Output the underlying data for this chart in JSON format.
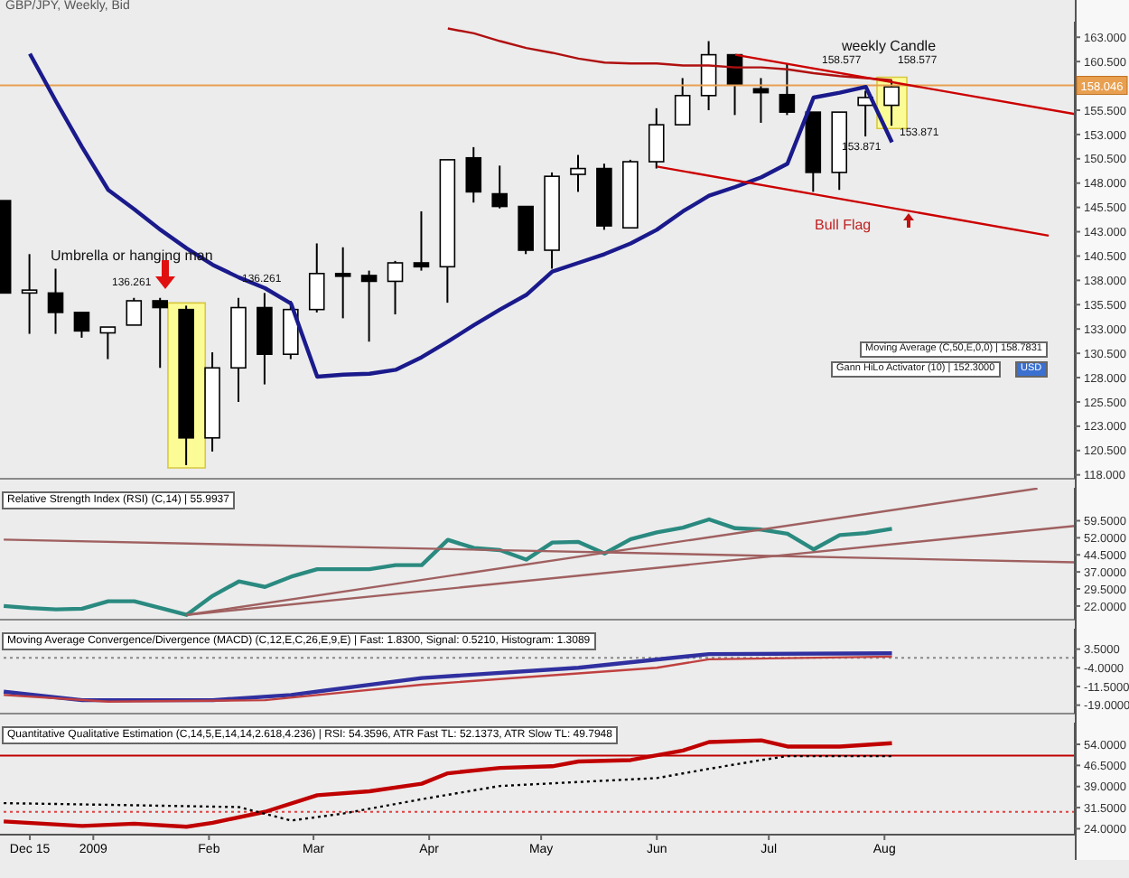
{
  "chart_data": [
    {
      "type": "candlestick",
      "title": "GBP/JPY, Weekly, Bid",
      "tick_labels": "y",
      "x": [
        "2008-12-08",
        "2008-12-15",
        "2008-12-22",
        "2008-12-29",
        "2009-01-05",
        "2009-01-12",
        "2009-01-19",
        "2009-01-26",
        "2009-02-02",
        "2009-02-09",
        "2009-02-16",
        "2009-02-23",
        "2009-03-02",
        "2009-03-09",
        "2009-03-16",
        "2009-03-23",
        "2009-03-30",
        "2009-04-06",
        "2009-04-13",
        "2009-04-20",
        "2009-04-27",
        "2009-05-04",
        "2009-05-11",
        "2009-05-18",
        "2009-05-25",
        "2009-06-01",
        "2009-06-08",
        "2009-06-15",
        "2009-06-22",
        "2009-06-29",
        "2009-07-06",
        "2009-07-13",
        "2009-07-20",
        "2009-07-27",
        "2009-08-03"
      ],
      "ohlc": [
        [
          146.2,
          146.2,
          136.7,
          136.7
        ],
        [
          136.7,
          140.7,
          132.5,
          137.0
        ],
        [
          136.7,
          139.2,
          132.5,
          134.7
        ],
        [
          134.7,
          134.7,
          132.1,
          132.8
        ],
        [
          132.6,
          133.2,
          129.9,
          133.2
        ],
        [
          133.4,
          136.2,
          133.4,
          135.9
        ],
        [
          135.9,
          136.2,
          129.0,
          135.2
        ],
        [
          135.0,
          135.4,
          119.0,
          121.8
        ],
        [
          121.8,
          130.6,
          120.4,
          129.0
        ],
        [
          129.0,
          136.2,
          125.5,
          135.2
        ],
        [
          135.2,
          136.7,
          127.3,
          130.4
        ],
        [
          130.4,
          135.9,
          129.9,
          135.0
        ],
        [
          135.0,
          141.8,
          134.7,
          138.7
        ],
        [
          138.7,
          141.4,
          134.1,
          138.5
        ],
        [
          138.5,
          139.0,
          131.7,
          137.9
        ],
        [
          137.9,
          140.0,
          134.5,
          139.8
        ],
        [
          139.8,
          145.1,
          139.0,
          139.4
        ],
        [
          139.4,
          150.4,
          135.7,
          150.4
        ],
        [
          150.6,
          151.7,
          146.0,
          147.1
        ],
        [
          146.9,
          149.8,
          145.4,
          145.6
        ],
        [
          145.6,
          145.6,
          140.7,
          141.1
        ],
        [
          141.1,
          149.1,
          139.2,
          148.7
        ],
        [
          148.9,
          150.9,
          147.1,
          149.5
        ],
        [
          149.5,
          150.0,
          143.2,
          143.6
        ],
        [
          143.4,
          150.4,
          143.4,
          150.2
        ],
        [
          150.2,
          155.7,
          149.5,
          154.0
        ],
        [
          154.0,
          158.8,
          154.0,
          157.0
        ],
        [
          157.0,
          162.6,
          155.5,
          161.2
        ],
        [
          161.2,
          161.2,
          155.0,
          158.1
        ],
        [
          157.7,
          158.8,
          154.2,
          157.3
        ],
        [
          157.1,
          160.3,
          155.0,
          155.3
        ],
        [
          155.3,
          155.3,
          147.1,
          149.1
        ],
        [
          149.1,
          155.3,
          147.3,
          155.3
        ],
        [
          156.0,
          157.5,
          152.8,
          156.8
        ],
        [
          156.0,
          158.6,
          153.9,
          157.9
        ]
      ],
      "series": [
        {
          "type": "line",
          "color": "#1a1a8c",
          "x": [
            "2008-12-15",
            "2008-12-22",
            "2008-12-29",
            "2009-01-05",
            "2009-01-12",
            "2009-01-19",
            "2009-01-26",
            "2009-02-02",
            "2009-02-09",
            "2009-02-16",
            "2009-02-23",
            "2009-03-02",
            "2009-03-09",
            "2009-03-16",
            "2009-03-23",
            "2009-03-30",
            "2009-04-06",
            "2009-04-13",
            "2009-04-20",
            "2009-04-27",
            "2009-05-04",
            "2009-05-11",
            "2009-05-18",
            "2009-05-25",
            "2009-06-01",
            "2009-06-08",
            "2009-06-15",
            "2009-06-22",
            "2009-06-29",
            "2009-07-06",
            "2009-07-13",
            "2009-07-20",
            "2009-07-27",
            "2009-08-03"
          ],
          "values": [
            161.3,
            156.4,
            151.7,
            147.3,
            145.3,
            143.2,
            141.3,
            139.6,
            138.3,
            137.2,
            135.6,
            128.1,
            128.3,
            128.4,
            128.8,
            130.1,
            131.7,
            133.4,
            135.0,
            136.5,
            138.9,
            139.8,
            140.7,
            141.8,
            143.2,
            145.1,
            146.7,
            147.6,
            148.6,
            150.0,
            156.8,
            157.3,
            157.9,
            152.2
          ]
        },
        {
          "type": "line",
          "color": "#b01010",
          "x": [
            "2009-04-06",
            "2009-04-13",
            "2009-04-20",
            "2009-04-27",
            "2009-05-04",
            "2009-05-11",
            "2009-05-18",
            "2009-05-25",
            "2009-06-01",
            "2009-06-08",
            "2009-06-15",
            "2009-06-22",
            "2009-06-29",
            "2009-07-06",
            "2009-07-13",
            "2009-07-20",
            "2009-07-27",
            "2009-08-03"
          ],
          "values": [
            163.9,
            163.4,
            162.6,
            161.9,
            161.4,
            160.8,
            160.4,
            160.3,
            160.3,
            160.1,
            160.1,
            159.9,
            159.9,
            159.7,
            159.3,
            159.0,
            158.8,
            158.6
          ]
        },
        {
          "type": "line",
          "color": "#cc0000",
          "x": [
            "2009-06-22",
            "2009-09-21"
          ],
          "values": [
            161.2,
            155.1
          ]
        },
        {
          "type": "line",
          "color": "#cc0000",
          "x": [
            "2009-06-01",
            "2009-09-14"
          ],
          "values": [
            149.7,
            142.6
          ]
        }
      ],
      "xlim": [
        "2008-12-07",
        "2009-09-21"
      ],
      "ylim": [
        117.6,
        164.6
      ],
      "yticks": [
        {
          "value": 118,
          "label": "118.000"
        },
        {
          "value": 120.5,
          "label": "120.500"
        },
        {
          "value": 123,
          "label": "123.000"
        },
        {
          "value": 125.5,
          "label": "125.500"
        },
        {
          "value": 128,
          "label": "128.000"
        },
        {
          "value": 130.5,
          "label": "130.500"
        },
        {
          "value": 133,
          "label": "133.000"
        },
        {
          "value": 135.5,
          "label": "135.500"
        },
        {
          "value": 138,
          "label": "138.000"
        },
        {
          "value": 140.5,
          "label": "140.500"
        },
        {
          "value": 143,
          "label": "143.000"
        },
        {
          "value": 145.5,
          "label": "145.500"
        },
        {
          "value": 148,
          "label": "148.000"
        },
        {
          "value": 150.5,
          "label": "150.500"
        },
        {
          "value": 153,
          "label": "153.000"
        },
        {
          "value": 155.5,
          "label": "155.500"
        },
        {
          "value": 160.5,
          "label": "160.500"
        },
        {
          "value": 163,
          "label": "163.000"
        }
      ],
      "ref_lines": [
        {
          "axis": "y",
          "value": 158.046,
          "label": "158.046",
          "color": "#e8a050"
        }
      ],
      "bands": [
        {
          "axis": "x",
          "from": "2009-01-21",
          "to": "2009-01-31",
          "color": "#ffff88"
        },
        {
          "axis": "x",
          "from": "2009-07-30",
          "to": "2009-08-07",
          "color": "#ffff88"
        }
      ],
      "annotations": [
        "Umbrella or hanging man",
        "136.261",
        "136.261",
        "weekly Candle",
        "158.577",
        "158.577",
        "153.871",
        "153.871",
        "Bull Flag",
        "Moving Average (C,50,E,0,0) | 158.7831",
        "Gann HiLo Activator (10) | 152.3000",
        "USD"
      ]
    },
    {
      "type": "line",
      "title": "Relative Strength Index (RSI) (C,14) | 55.9937",
      "tick_labels": "y",
      "series": [
        {
          "type": "line",
          "color": "#2a8a80",
          "x": [
            "2008-12-08",
            "2008-12-15",
            "2008-12-22",
            "2008-12-29",
            "2009-01-05",
            "2009-01-12",
            "2009-01-26",
            "2009-02-02",
            "2009-02-09",
            "2009-02-16",
            "2009-02-23",
            "2009-03-02",
            "2009-03-09",
            "2009-03-16",
            "2009-03-23",
            "2009-03-30",
            "2009-04-06",
            "2009-04-13",
            "2009-04-20",
            "2009-04-27",
            "2009-05-04",
            "2009-05-11",
            "2009-05-18",
            "2009-05-25",
            "2009-06-01",
            "2009-06-08",
            "2009-06-15",
            "2009-06-22",
            "2009-06-29",
            "2009-07-06",
            "2009-07-13",
            "2009-07-20",
            "2009-07-27",
            "2009-08-03"
          ],
          "values": [
            22.0,
            21.1,
            20.5,
            20.8,
            24.1,
            24.1,
            18.1,
            26.5,
            32.8,
            30.4,
            34.9,
            38.2,
            38.2,
            38.2,
            40.0,
            40.0,
            51.1,
            47.5,
            46.6,
            42.4,
            49.9,
            50.2,
            45.1,
            51.4,
            54.4,
            56.5,
            60.1,
            56.2,
            55.6,
            53.8,
            46.9,
            53.2,
            54.1,
            56.0
          ]
        },
        {
          "type": "line",
          "color": "#a06060",
          "x": [
            "2009-01-26",
            "2009-09-11"
          ],
          "values": [
            18.1,
            73.7
          ]
        },
        {
          "type": "line",
          "color": "#a06060",
          "x": [
            "2009-01-26",
            "2009-09-21"
          ],
          "values": [
            18.1,
            57.2
          ]
        },
        {
          "type": "line",
          "color": "#a06060",
          "x": [
            "2008-12-08",
            "2009-09-21"
          ],
          "values": [
            51.2,
            41.2
          ]
        }
      ],
      "xlim": [
        "2008-12-07",
        "2009-09-21"
      ],
      "ylim": [
        16,
        74
      ],
      "yticks": [
        {
          "value": 22,
          "label": "22.0000"
        },
        {
          "value": 29.5,
          "label": "29.5000"
        },
        {
          "value": 37,
          "label": "37.0000"
        },
        {
          "value": 44.5,
          "label": "44.5000"
        },
        {
          "value": 52,
          "label": "52.0000"
        },
        {
          "value": 59.5,
          "label": "59.5000"
        }
      ]
    },
    {
      "type": "line",
      "title": "Moving Average Convergence/Divergence (MACD) (C,12,E,C,26,E,9,E) | Fast: 1.8300, Signal: 0.5210, Histogram: 1.3089",
      "tick_labels": "y",
      "series": [
        {
          "type": "line",
          "color": "#3030a0",
          "x": [
            "2008-12-08",
            "2008-12-29",
            "2009-02-02",
            "2009-02-23",
            "2009-03-30",
            "2009-05-11",
            "2009-06-15",
            "2009-08-03"
          ],
          "values": [
            -13.6,
            -17.0,
            -17.0,
            -14.9,
            -8.1,
            -4.0,
            1.5,
            1.8
          ]
        },
        {
          "type": "line",
          "color": "#c04040",
          "x": [
            "2008-12-08",
            "2009-01-05",
            "2009-02-16",
            "2009-03-30",
            "2009-06-01",
            "2009-06-15",
            "2009-08-03"
          ],
          "values": [
            -14.9,
            -17.6,
            -17.0,
            -10.8,
            -4.0,
            -0.6,
            0.5
          ]
        }
      ],
      "ref_lines": [
        {
          "axis": "y",
          "value": 0,
          "color": "#888888",
          "line_style": "dotted"
        }
      ],
      "xlim": [
        "2008-12-07",
        "2009-09-21"
      ],
      "ylim": [
        -22.4,
        11.7
      ],
      "yticks": [
        {
          "value": -19,
          "label": "-19.0000"
        },
        {
          "value": -11.5,
          "label": "-11.5000"
        },
        {
          "value": -4,
          "label": "-4.0000"
        },
        {
          "value": 3.5,
          "label": "3.5000"
        }
      ]
    },
    {
      "type": "line",
      "title": "Quantitative Qualitative Estimation (C,14,5,E,14,14,2.618,4.236) | RSI: 54.3596, ATR Fast TL: 52.1373, ATR Slow TL: 49.7948",
      "series": [
        {
          "type": "line",
          "color": "#c00000",
          "x": [
            "2008-12-08",
            "2008-12-29",
            "2009-01-12",
            "2009-01-26",
            "2009-02-02",
            "2009-02-16",
            "2009-03-02",
            "2009-03-16",
            "2009-03-30",
            "2009-04-06",
            "2009-04-20",
            "2009-05-04",
            "2009-05-11",
            "2009-05-25",
            "2009-06-08",
            "2009-06-15",
            "2009-06-29",
            "2009-07-06",
            "2009-07-20",
            "2009-08-03"
          ],
          "values": [
            26.6,
            25.0,
            25.8,
            24.7,
            26.1,
            30.0,
            35.9,
            37.3,
            40.0,
            43.7,
            45.6,
            46.2,
            47.9,
            48.4,
            51.8,
            54.8,
            55.4,
            53.2,
            53.2,
            54.4
          ]
        },
        {
          "type": "line",
          "color": "#000000",
          "line_style": "dotted",
          "x": [
            "2008-12-08",
            "2009-01-05",
            "2009-02-09",
            "2009-02-23",
            "2009-03-09",
            "2009-03-30",
            "2009-04-20",
            "2009-06-01",
            "2009-06-15",
            "2009-06-29",
            "2009-07-06",
            "2009-08-03"
          ],
          "values": [
            33.1,
            32.5,
            31.7,
            26.9,
            29.4,
            34.5,
            39.2,
            42.0,
            45.3,
            48.4,
            49.8,
            49.8
          ]
        }
      ],
      "ref_lines": [
        {
          "axis": "y",
          "value": 50,
          "color": "#c00000"
        },
        {
          "axis": "y",
          "value": 30,
          "color": "#e04040",
          "line_style": "dotted"
        }
      ],
      "xlim": [
        "2008-12-07",
        "2009-09-21"
      ],
      "xticks": [
        {
          "value": "2008-12-15",
          "label": "Dec 15"
        },
        {
          "value": "2009-01-01",
          "label": "2009"
        },
        {
          "value": "2009-02-01",
          "label": "Feb"
        },
        {
          "value": "2009-03-01",
          "label": "Mar"
        },
        {
          "value": "2009-04-01",
          "label": "Apr"
        },
        {
          "value": "2009-05-01",
          "label": "May"
        },
        {
          "value": "2009-06-01",
          "label": "Jun"
        },
        {
          "value": "2009-07-01",
          "label": "Jul"
        },
        {
          "value": "2009-08-01",
          "label": "Aug"
        }
      ],
      "ylim": [
        21.9,
        61.7
      ],
      "yticks": [
        {
          "value": 24,
          "label": "24.0000"
        },
        {
          "value": 31.5,
          "label": "31.5000"
        },
        {
          "value": 39,
          "label": "39.0000"
        },
        {
          "value": 46.5,
          "label": "46.5000"
        },
        {
          "value": 54,
          "label": "54.0000"
        }
      ]
    }
  ]
}
